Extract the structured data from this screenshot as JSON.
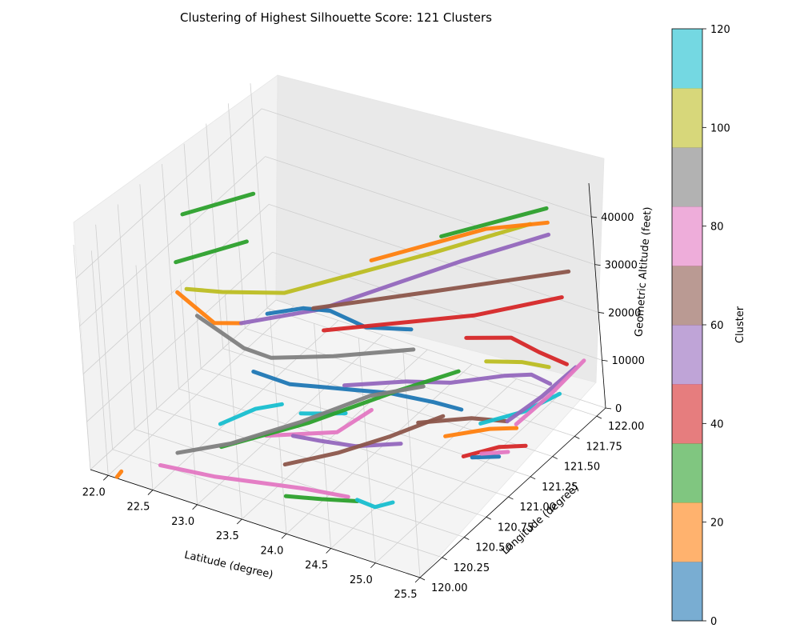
{
  "chart_data": {
    "type": "line",
    "projection": "3d",
    "title": "Clustering of Highest Silhouette Score: 121 Clusters",
    "xlabel": "Latitude (degree)",
    "ylabel": "Longitude (degree)",
    "zlabel": "Geometric Altitude (feet)",
    "xlim": [
      21.8,
      25.5
    ],
    "ylim": [
      120.0,
      122.1
    ],
    "zlim": [
      0,
      47000
    ],
    "x_ticks": [
      "22.0",
      "22.5",
      "23.0",
      "23.5",
      "24.0",
      "24.5",
      "25.0",
      "25.5"
    ],
    "y_ticks": [
      "120.00",
      "120.25",
      "120.50",
      "120.75",
      "121.00",
      "121.25",
      "121.50",
      "121.75",
      "122.00"
    ],
    "z_ticks": [
      "0",
      "10000",
      "20000",
      "30000",
      "40000"
    ],
    "grid": true,
    "colorbar": {
      "label": "Cluster",
      "range": [
        0,
        120
      ],
      "ticks": [
        "0",
        "20",
        "40",
        "60",
        "80",
        "100",
        "120"
      ],
      "colors": [
        "#1f77b4",
        "#ff7f0e",
        "#2ca02c",
        "#d62728",
        "#9467bd",
        "#8c564b",
        "#e377c2",
        "#7f7f7f",
        "#bcbd22",
        "#17becf"
      ]
    },
    "series": [
      {
        "color": "#2ca02c",
        "points": [
          [
            22.1,
            120.9,
            40000
          ],
          [
            22.5,
            121.3,
            40000
          ]
        ]
      },
      {
        "color": "#2ca02c",
        "points": [
          [
            22.2,
            120.7,
            34000
          ],
          [
            22.6,
            121.1,
            34000
          ]
        ]
      },
      {
        "color": "#ff7f0e",
        "points": [
          [
            22.3,
            120.6,
            30000
          ],
          [
            22.5,
            120.6,
            28000
          ],
          [
            22.7,
            120.6,
            26000
          ],
          [
            22.9,
            120.7,
            25500
          ]
        ]
      },
      {
        "color": "#bcbd22",
        "points": [
          [
            22.3,
            120.7,
            29000
          ],
          [
            22.6,
            120.8,
            28500
          ],
          [
            23.1,
            121.0,
            28000
          ],
          [
            24.2,
            121.6,
            33000
          ],
          [
            24.9,
            122.0,
            36500
          ]
        ]
      },
      {
        "color": "#9467bd",
        "points": [
          [
            22.9,
            120.7,
            25500
          ],
          [
            23.5,
            121.0,
            27000
          ],
          [
            24.5,
            121.6,
            33000
          ],
          [
            25.1,
            122.0,
            35500
          ]
        ]
      },
      {
        "color": "#1f77b4",
        "points": [
          [
            23.1,
            120.8,
            27000
          ],
          [
            23.3,
            121.0,
            26000
          ],
          [
            23.5,
            121.1,
            25000
          ],
          [
            23.9,
            121.1,
            24000
          ],
          [
            24.2,
            121.3,
            22000
          ]
        ]
      },
      {
        "color": "#7f7f7f",
        "points": [
          [
            22.4,
            120.7,
            24000
          ],
          [
            22.8,
            120.8,
            18000
          ],
          [
            23.0,
            120.9,
            15500
          ],
          [
            23.5,
            121.1,
            15500
          ],
          [
            24.1,
            121.4,
            15500
          ]
        ]
      },
      {
        "color": "#ff7f0e",
        "points": [
          [
            23.8,
            121.3,
            34000
          ],
          [
            24.6,
            121.8,
            37000
          ],
          [
            25.1,
            122.0,
            38000
          ]
        ]
      },
      {
        "color": "#2ca02c",
        "points": [
          [
            24.3,
            121.6,
            37000
          ],
          [
            25.1,
            122.0,
            41000
          ]
        ]
      },
      {
        "color": "#1f77b4",
        "points": [
          [
            23.0,
            120.7,
            16000
          ],
          [
            23.3,
            120.8,
            13500
          ],
          [
            23.6,
            120.9,
            13000
          ],
          [
            23.8,
            121.0,
            12000
          ],
          [
            24.1,
            121.1,
            11500
          ],
          [
            24.4,
            121.3,
            8000
          ],
          [
            24.6,
            121.4,
            6000
          ]
        ]
      },
      {
        "color": "#8c564b",
        "points": [
          [
            23.2,
            121.2,
            22000
          ],
          [
            24.2,
            121.6,
            25000
          ],
          [
            25.3,
            122.0,
            29000
          ]
        ]
      },
      {
        "color": "#d62728",
        "points": [
          [
            23.3,
            121.2,
            18000
          ],
          [
            24.5,
            121.7,
            20000
          ],
          [
            25.2,
            122.0,
            23000
          ]
        ]
      },
      {
        "color": "#9467bd",
        "points": [
          [
            23.6,
            121.1,
            10000
          ],
          [
            24.1,
            121.3,
            10500
          ],
          [
            24.5,
            121.4,
            11000
          ],
          [
            24.9,
            121.6,
            11500
          ],
          [
            25.0,
            121.8,
            9000
          ],
          [
            25.1,
            121.9,
            6000
          ]
        ]
      },
      {
        "color": "#bcbd22",
        "points": [
          [
            24.6,
            121.7,
            11000
          ],
          [
            24.9,
            121.8,
            11000
          ],
          [
            25.1,
            121.9,
            9500
          ]
        ]
      },
      {
        "color": "#d62728",
        "points": [
          [
            24.5,
            121.6,
            17000
          ],
          [
            24.8,
            121.8,
            15500
          ],
          [
            25.0,
            121.9,
            12000
          ],
          [
            25.2,
            122.0,
            9000
          ]
        ]
      },
      {
        "color": "#17becf",
        "points": [
          [
            23.4,
            120.8,
            8000
          ],
          [
            23.6,
            120.9,
            7500
          ],
          [
            23.7,
            121.0,
            6500
          ]
        ]
      },
      {
        "color": "#e377c2",
        "points": [
          [
            23.2,
            120.6,
            5500
          ],
          [
            23.5,
            120.7,
            6000
          ],
          [
            23.8,
            120.8,
            6500
          ],
          [
            24.0,
            121.0,
            9000
          ]
        ]
      },
      {
        "color": "#2ca02c",
        "points": [
          [
            23.0,
            120.3,
            7000
          ],
          [
            23.6,
            120.7,
            9000
          ],
          [
            24.2,
            121.1,
            12500
          ],
          [
            24.6,
            121.4,
            14000
          ]
        ]
      },
      {
        "color": "#7f7f7f",
        "points": [
          [
            22.6,
            120.2,
            5000
          ],
          [
            23.0,
            120.4,
            6000
          ],
          [
            23.5,
            120.7,
            8500
          ],
          [
            24.0,
            121.0,
            12000
          ],
          [
            24.4,
            121.2,
            13000
          ]
        ]
      },
      {
        "color": "#9467bd",
        "points": [
          [
            23.4,
            120.7,
            5000
          ],
          [
            23.6,
            120.8,
            3500
          ],
          [
            23.9,
            120.9,
            2500
          ],
          [
            24.2,
            121.1,
            1500
          ]
        ]
      },
      {
        "color": "#8c564b",
        "points": [
          [
            23.5,
            120.5,
            3000
          ],
          [
            23.9,
            120.7,
            4500
          ],
          [
            24.3,
            120.9,
            7000
          ],
          [
            24.6,
            121.2,
            8000
          ]
        ]
      },
      {
        "color": "#e377c2",
        "points": [
          [
            22.5,
            120.1,
            3500
          ],
          [
            23.0,
            120.2,
            2500
          ],
          [
            23.8,
            120.4,
            1500
          ],
          [
            24.2,
            120.5,
            500
          ]
        ]
      },
      {
        "color": "#2ca02c",
        "points": [
          [
            23.7,
            120.3,
            1000
          ],
          [
            24.0,
            120.4,
            500
          ],
          [
            24.3,
            120.5,
            200
          ]
        ]
      },
      {
        "color": "#17becf",
        "points": [
          [
            24.3,
            120.5,
            500
          ],
          [
            24.5,
            120.5,
            200
          ],
          [
            24.6,
            120.6,
            100
          ]
        ]
      },
      {
        "color": "#ff7f0e",
        "points": [
          [
            22.1,
            120.0,
            300
          ],
          [
            22.1,
            120.05,
            600
          ]
        ]
      },
      {
        "color": "#8c564b",
        "points": [
          [
            24.2,
            121.3,
            2500
          ],
          [
            24.6,
            121.5,
            2500
          ],
          [
            24.9,
            121.6,
            2000
          ]
        ]
      },
      {
        "color": "#ff7f0e",
        "points": [
          [
            24.5,
            121.3,
            1500
          ],
          [
            24.8,
            121.5,
            1500
          ],
          [
            25.0,
            121.6,
            1200
          ]
        ]
      },
      {
        "color": "#17becf",
        "points": [
          [
            24.7,
            121.5,
            2000
          ],
          [
            25.0,
            121.7,
            3000
          ],
          [
            25.2,
            121.9,
            4500
          ]
        ]
      },
      {
        "color": "#9467bd",
        "points": [
          [
            24.9,
            121.6,
            2000
          ],
          [
            25.1,
            121.8,
            5000
          ],
          [
            25.3,
            122.0,
            9000
          ]
        ]
      },
      {
        "color": "#d62728",
        "points": [
          [
            24.8,
            121.2,
            800
          ],
          [
            25.0,
            121.4,
            600
          ],
          [
            25.2,
            121.5,
            400
          ]
        ]
      },
      {
        "color": "#1f77b4",
        "points": [
          [
            24.9,
            121.2,
            1200
          ],
          [
            25.1,
            121.3,
            900
          ]
        ]
      },
      {
        "color": "#e377c2",
        "points": [
          [
            24.9,
            121.3,
            300
          ],
          [
            25.1,
            121.4,
            200
          ]
        ]
      },
      {
        "color": "#e377c2",
        "points": [
          [
            25.0,
            121.6,
            2000
          ],
          [
            25.2,
            121.8,
            6000
          ],
          [
            25.4,
            122.0,
            11000
          ]
        ]
      },
      {
        "color": "#17becf",
        "points": [
          [
            22.9,
            120.4,
            9500
          ],
          [
            23.1,
            120.6,
            10500
          ],
          [
            23.3,
            120.7,
            11000
          ]
        ]
      }
    ]
  }
}
